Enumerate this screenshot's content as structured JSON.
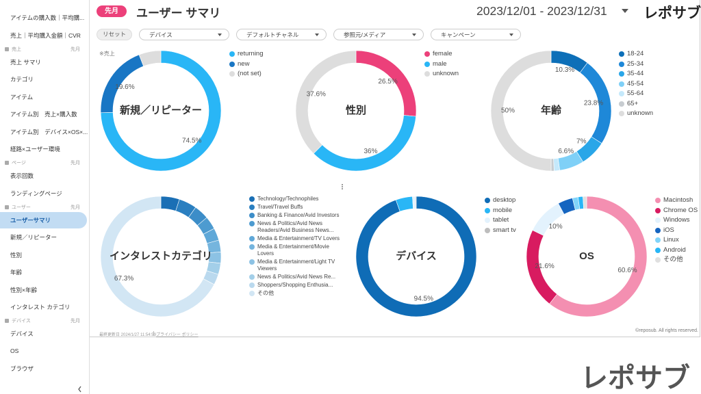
{
  "sidebar": {
    "groups": [
      {
        "items": [
          {
            "label": "アイテムの購入数｜平均購..."
          },
          {
            "label": "売上｜平均購入金額｜CVR"
          }
        ]
      },
      {
        "title": "売上",
        "period": "先月",
        "items": [
          {
            "label": "売上 サマリ"
          },
          {
            "label": "カテゴリ"
          },
          {
            "label": "アイテム"
          },
          {
            "label": "アイテム別　売上×購入数"
          },
          {
            "label": "アイテム別　デバイス×OS×..."
          },
          {
            "label": "経路×ユーザー環境"
          }
        ]
      },
      {
        "title": "ページ",
        "period": "先月",
        "items": [
          {
            "label": "表示回数"
          },
          {
            "label": "ランディングページ"
          }
        ]
      },
      {
        "title": "ユーザー",
        "period": "先月",
        "items": [
          {
            "label": "ユーザーサマリ",
            "active": true
          },
          {
            "label": "新規／リピーター"
          },
          {
            "label": "性別"
          },
          {
            "label": "年齢"
          },
          {
            "label": "性別×年齢"
          },
          {
            "label": "インタレスト カテゴリ"
          }
        ]
      },
      {
        "title": "デバイス",
        "period": "先月",
        "items": [
          {
            "label": "デバイス"
          },
          {
            "label": "OS"
          },
          {
            "label": "ブラウザ"
          }
        ]
      }
    ]
  },
  "header": {
    "badge": "先月",
    "title": "ユーザー サマリ",
    "date_range": "2023/12/01 - 2023/12/31",
    "logo": "レポサブ"
  },
  "filters": {
    "reset": "リセット",
    "dropdowns": [
      "デバイス",
      "デフォルトチャネル",
      "参照元/メディア",
      "キャンペーン"
    ]
  },
  "chart_data": [
    {
      "type": "donut",
      "title": "新規／リピーター",
      "note": "※売上",
      "categories": [
        "returning",
        "new",
        "(not set)"
      ],
      "values": [
        74.5,
        19.6,
        5.9
      ],
      "value_labels": [
        "74.5%",
        "19.6%",
        null
      ],
      "colors": [
        "#29b6f6",
        "#1976c4",
        "#dddddd"
      ]
    },
    {
      "type": "donut",
      "title": "性別",
      "categories": [
        "female",
        "male",
        "unknown"
      ],
      "values": [
        26.5,
        36,
        37.6
      ],
      "value_labels": [
        "26.5%",
        "36%",
        "37.6%"
      ],
      "colors": [
        "#ec407a",
        "#29b6f6",
        "#dddddd"
      ]
    },
    {
      "type": "donut",
      "title": "年齢",
      "categories": [
        "18-24",
        "25-34",
        "35-44",
        "45-54",
        "55-64",
        "65+",
        "unknown"
      ],
      "values": [
        10.3,
        23.8,
        7,
        6.6,
        1.5,
        0.8,
        50
      ],
      "value_labels": [
        "10.3%",
        "23.8%",
        "7%",
        "6.6%",
        null,
        null,
        "50%"
      ],
      "colors": [
        "#0d6fb8",
        "#1e88d8",
        "#29a6e8",
        "#7fd0f7",
        "#c5e9fb",
        "#c7ccd0",
        "#dddddd"
      ]
    },
    {
      "type": "donut",
      "title": "インタレストカテゴリ",
      "categories": [
        "Technology/Technophiles",
        "Travel/Travel Buffs",
        "Banking & Finance/Avid Investors",
        "News & Politics/Avid News Readers/Avid Business News...",
        "Media & Entertainment/TV Lovers",
        "Media & Entertainment/Movie Lovers",
        "Media & Entertainment/Light TV Viewers",
        "News & Politics/Avid News Re...",
        "Shoppers/Shopping Enthusia...",
        "その他"
      ],
      "values": [
        5,
        4.8,
        4,
        3.5,
        3.3,
        3.2,
        3,
        3,
        2.9,
        67.3
      ],
      "value_labels": [
        null,
        null,
        null,
        null,
        null,
        null,
        null,
        null,
        null,
        "67.3%"
      ],
      "colors": [
        "#1a6fb5",
        "#2a7fc0",
        "#3c8dc8",
        "#4d9bd0",
        "#5fa8d8",
        "#75b5de",
        "#8cc2e4",
        "#a3cfe9",
        "#bad9ee",
        "#d2e6f4"
      ]
    },
    {
      "type": "donut",
      "title": "デバイス",
      "categories": [
        "desktop",
        "mobile",
        "tablet",
        "smart tv"
      ],
      "values": [
        94.5,
        4.5,
        0.8,
        0.2
      ],
      "value_labels": [
        "94.5%",
        null,
        null,
        null
      ],
      "colors": [
        "#0f6cb6",
        "#29b6f6",
        "#e3f2fd",
        "#bdbdbd"
      ]
    },
    {
      "type": "donut",
      "title": "OS",
      "categories": [
        "Macintosh",
        "Chrome OS",
        "Windows",
        "iOS",
        "Linux",
        "Android",
        "その他"
      ],
      "values": [
        60.6,
        21.6,
        10,
        4,
        1.5,
        1.3,
        1
      ],
      "value_labels": [
        "60.6%",
        "21.6%",
        "10%",
        null,
        null,
        null,
        null
      ],
      "colors": [
        "#f48fb1",
        "#d81b60",
        "#e3f2fd",
        "#1565c0",
        "#81d4fa",
        "#29b6f6",
        "#e0e0e0"
      ]
    }
  ],
  "footer": {
    "updated": "最終更新日 2024/1/27 11:54:59",
    "privacy": "プライバシー ポリシー",
    "copyright": "©reposub. All rights reserved."
  },
  "watermark": "レポサブ"
}
